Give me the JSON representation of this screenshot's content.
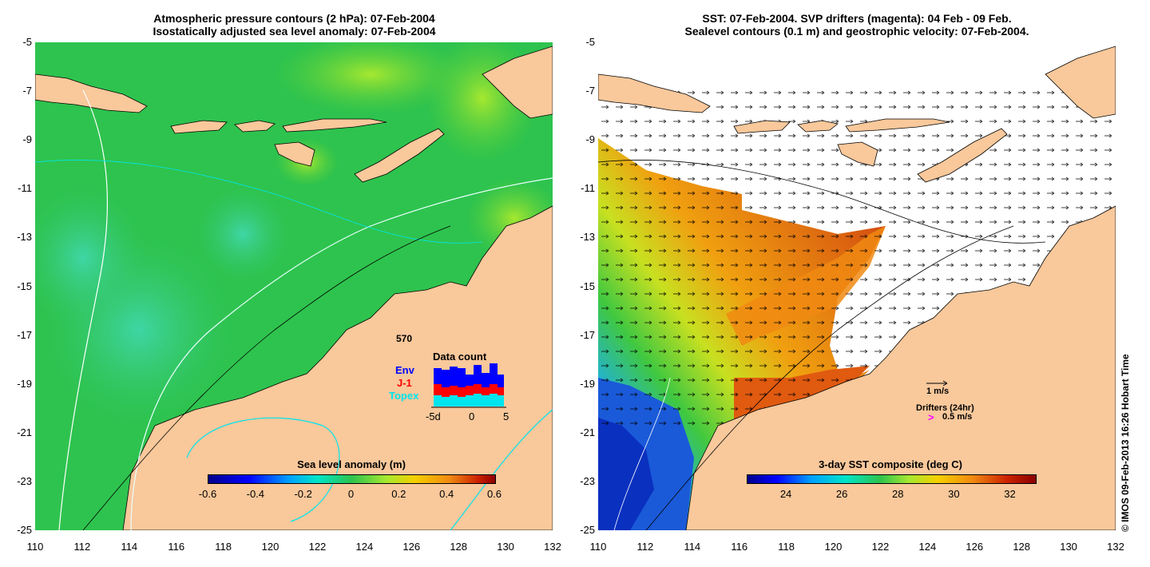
{
  "left_panel": {
    "title_line1": "Atmospheric pressure contours (2 hPa): 07-Feb-2004",
    "title_line2": "Isostatically adjusted sea level anomaly: 07-Feb-2004",
    "y_ticks": [
      "-5",
      "-7",
      "-9",
      "-11",
      "-13",
      "-15",
      "-17",
      "-19",
      "-21",
      "-23",
      "-25"
    ],
    "x_ticks": [
      "110",
      "112",
      "114",
      "116",
      "118",
      "120",
      "122",
      "124",
      "126",
      "128",
      "130",
      "132"
    ],
    "colorbar_title": "Sea level anomaly (m)",
    "colorbar_ticks": [
      "-0.6",
      "-0.4",
      "-0.2",
      "0",
      "0.2",
      "0.4",
      "0.6"
    ],
    "colorbar_range": [
      -0.6,
      0.6
    ],
    "data_count": {
      "title": "Data count",
      "total": "570",
      "legend": [
        {
          "label": "Env",
          "color": "#0000ff"
        },
        {
          "label": "J-1",
          "color": "#ff0000"
        },
        {
          "label": "Topex",
          "color": "#00e5ee"
        }
      ],
      "x_ticks": [
        "-5d",
        "0",
        "5"
      ]
    }
  },
  "right_panel": {
    "title_line1": "SST: 07-Feb-2004. SVP drifters (magenta): 04 Feb - 09 Feb.",
    "title_line2": "Sealevel contours (0.1 m) and geostrophic velocity: 07-Feb-2004.",
    "y_ticks": [
      "-5",
      "-7",
      "-9",
      "-11",
      "-13",
      "-15",
      "-17",
      "-19",
      "-21",
      "-23",
      "-25"
    ],
    "x_ticks": [
      "110",
      "112",
      "114",
      "116",
      "118",
      "120",
      "122",
      "124",
      "126",
      "128",
      "130",
      "132"
    ],
    "velocity_scale_label": "1 m/s",
    "drifters_label": "Drifters (24hr)",
    "drifter_speed_label": "0.5 m/s",
    "drifter_marker": ">",
    "colorbar_title": "3-day SST composite (deg C)",
    "colorbar_ticks": [
      "24",
      "26",
      "28",
      "30",
      "32"
    ],
    "colorbar_range": [
      22.6,
      32.9
    ]
  },
  "credit": "© IMOS 09-Feb-2013 16:26 Hobart Time",
  "colors": {
    "land": "#f9c89b",
    "ocean_green": "#33c74a",
    "sst_orange": "#f08a12",
    "drifter_magenta": "#ff00ff"
  }
}
